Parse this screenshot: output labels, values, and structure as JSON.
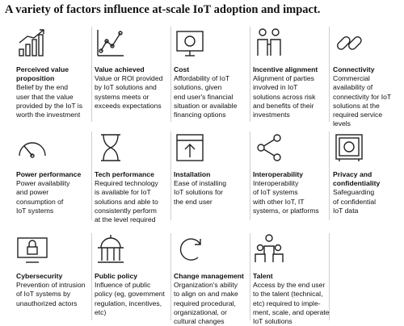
{
  "title": "A variety of factors influence at-scale IoT adoption and impact.",
  "items": [
    {
      "title": [
        "Perceived value",
        "proposition"
      ],
      "text": [
        "Belief by the end",
        "user that the value",
        "provided by the IoT is",
        "worth the investment"
      ]
    },
    {
      "title": [
        "Value achieved"
      ],
      "text": [
        "Value or ROI provided",
        "by IoT solutions and",
        "systems meets or",
        "exceeds expectations"
      ]
    },
    {
      "title": [
        "Cost"
      ],
      "text": [
        "Affordability of IoT",
        "solutions, given",
        "end user's financial",
        "situation or available",
        "financing options"
      ]
    },
    {
      "title": [
        "Incentive alignment"
      ],
      "text": [
        "Alignment of parties",
        "involved in IoT",
        "solutions across risk",
        "and benefits of their",
        "investments"
      ]
    },
    {
      "title": [
        "Connectivity"
      ],
      "text": [
        "Commercial",
        "availability of",
        "connectivity for IoT",
        "solutions at the",
        "required service",
        "levels"
      ]
    },
    {
      "title": [
        "Power performance"
      ],
      "text": [
        "Power availability",
        "and power",
        "consumption of",
        "IoT systems"
      ]
    },
    {
      "title": [
        "Tech performance"
      ],
      "text": [
        "Required technology",
        "is available for IoT",
        "solutions and able to",
        "consistently perform",
        "at the level required"
      ]
    },
    {
      "title": [
        "Installation"
      ],
      "text": [
        "Ease of installing",
        "IoT solutions for",
        "the end user"
      ]
    },
    {
      "title": [
        "Interoperability"
      ],
      "text": [
        "Interoperability",
        "of IoT systems",
        "with other IoT, IT",
        "systems, or platforms"
      ]
    },
    {
      "title": [
        "Privacy and",
        "confidentiality"
      ],
      "text": [
        "Safeguarding",
        "of confidential",
        "IoT data"
      ]
    },
    {
      "title": [
        "Cybersecurity"
      ],
      "text": [
        "Prevention of intrusion",
        "of IoT systems by",
        "unauthorized actors"
      ]
    },
    {
      "title": [
        "Public policy"
      ],
      "text": [
        "Influence of public",
        "policy (eg, government",
        "regulation, incentives,",
        "etc)"
      ]
    },
    {
      "title": [
        "Change management"
      ],
      "text": [
        "Organization's ability",
        "to align on and make",
        "required procedural,",
        "organizational, or",
        "cultural changes"
      ]
    },
    {
      "title": [
        "Talent"
      ],
      "text": [
        "Access by the end user",
        "to the talent (technical,",
        "etc) required to imple-",
        "ment, scale, and operate",
        "IoT solutions"
      ]
    }
  ]
}
